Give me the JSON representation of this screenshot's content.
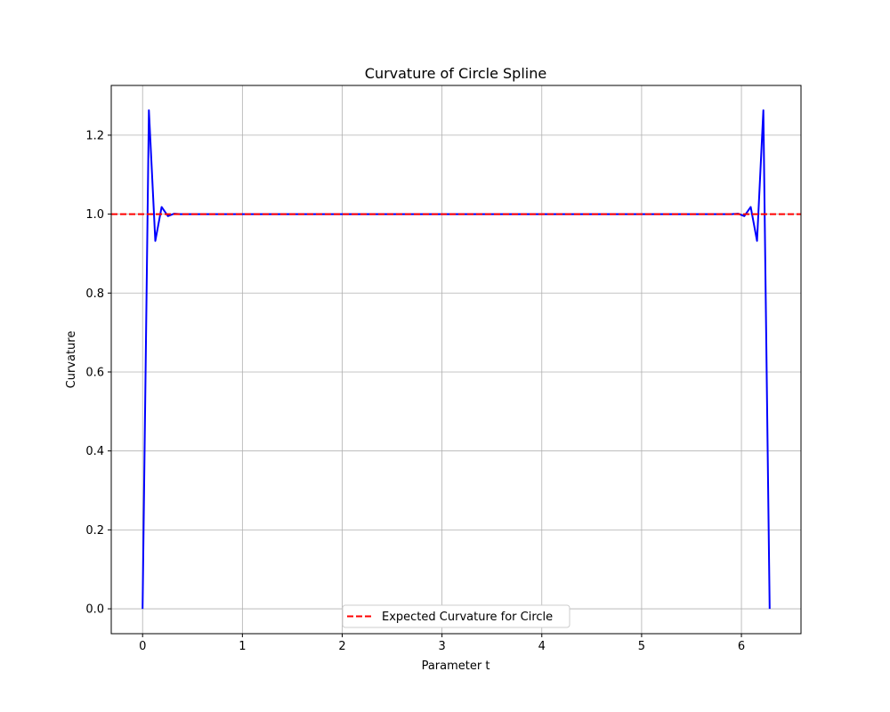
{
  "chart_data": {
    "type": "line",
    "title": "Curvature of Circle Spline",
    "xlabel": "Parameter t",
    "ylabel": "Curvature",
    "xlim": [
      -0.314,
      6.597
    ],
    "ylim": [
      -0.063,
      1.326
    ],
    "xticks": [
      0,
      1,
      2,
      3,
      4,
      5,
      6
    ],
    "xtick_labels": [
      "0",
      "1",
      "2",
      "3",
      "4",
      "5",
      "6"
    ],
    "yticks": [
      0.0,
      0.2,
      0.4,
      0.6,
      0.8,
      1.0,
      1.2
    ],
    "ytick_labels": [
      "0.0",
      "0.2",
      "0.4",
      "0.6",
      "0.8",
      "1.0",
      "1.2"
    ],
    "grid": true,
    "legend_position": "bottom-center",
    "series": [
      {
        "color": "#0000ff",
        "style": "solid",
        "x": [
          0.0,
          0.0635,
          0.127,
          0.1904,
          0.2539,
          0.3174,
          0.38,
          1.0,
          2.0,
          3.0,
          4.0,
          5.0,
          5.9,
          5.966,
          6.0293,
          6.0928,
          6.1562,
          6.2197,
          6.2832
        ],
        "y": [
          0.0,
          1.263,
          0.932,
          1.018,
          0.995,
          1.001,
          1.0,
          1.0,
          1.0,
          1.0,
          1.0,
          1.0,
          1.0,
          1.001,
          0.995,
          1.018,
          0.932,
          1.263,
          0.0
        ]
      },
      {
        "name": "Expected Curvature for Circle",
        "color": "#ff0000",
        "style": "dashed",
        "type": "hline",
        "y": 1.0
      }
    ]
  }
}
